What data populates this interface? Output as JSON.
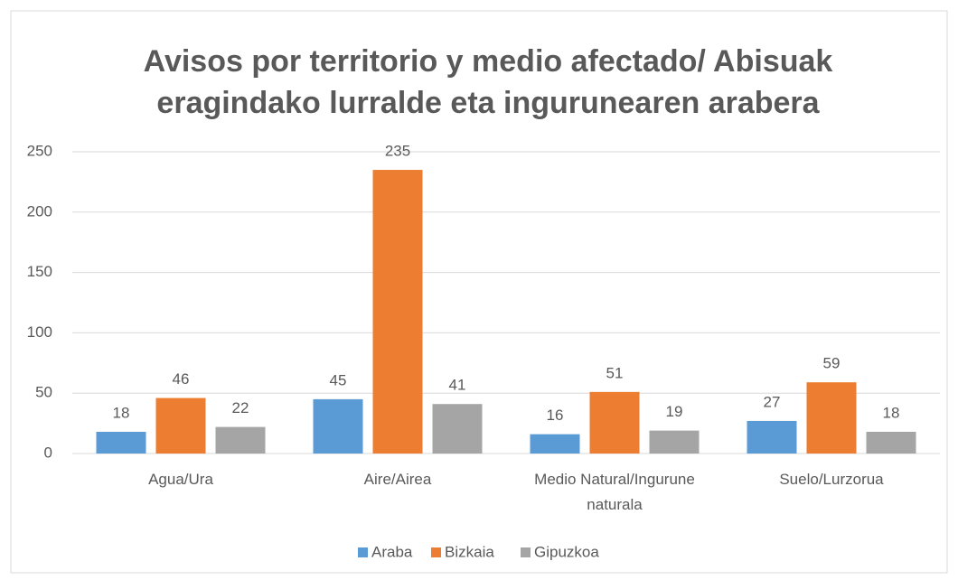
{
  "chart_data": {
    "type": "bar",
    "title": "Avisos por territorio y medio afectado/  Abisuak eragindako lurralde eta ingurunearen arabera",
    "categories": [
      "Agua/Ura",
      "Aire/Airea",
      "Medio Natural/Ingurune naturala",
      "Suelo/Lurzorua"
    ],
    "series": [
      {
        "name": "Araba",
        "color": "#5b9bd5",
        "values": [
          18,
          45,
          16,
          27
        ]
      },
      {
        "name": "Bizkaia",
        "color": "#ed7d31",
        "values": [
          46,
          235,
          51,
          59
        ]
      },
      {
        "name": "Gipuzkoa",
        "color": "#a5a5a5",
        "values": [
          22,
          41,
          19,
          18
        ]
      }
    ],
    "ylim": [
      0,
      250
    ],
    "yticks": [
      0,
      50,
      100,
      150,
      200,
      250
    ],
    "grid": true,
    "legend": "bottom"
  }
}
